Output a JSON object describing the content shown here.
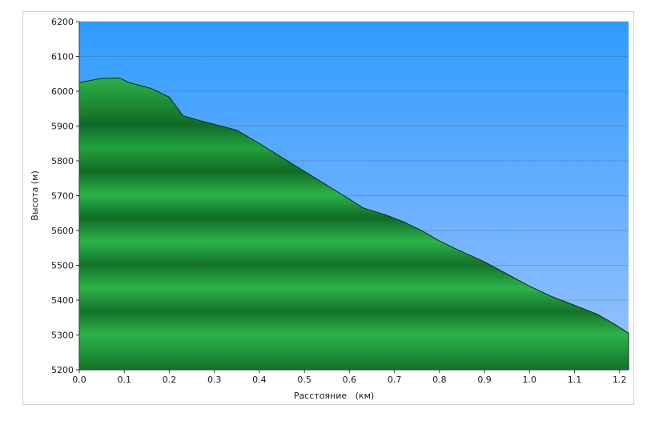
{
  "chart_data": {
    "type": "area",
    "title": "",
    "xlabel": "Расстояние   (км)",
    "ylabel": "Высота (м)",
    "xlim": [
      0.0,
      1.22
    ],
    "ylim": [
      5200,
      6200
    ],
    "x_ticks": [
      "0.0",
      "0.1",
      "0.2",
      "0.3",
      "0.4",
      "0.5",
      "0.6",
      "0.7",
      "0.8",
      "0.9",
      "1.0",
      "1.1",
      "1.2"
    ],
    "y_ticks": [
      "5200",
      "5300",
      "5400",
      "5500",
      "5600",
      "5700",
      "5800",
      "5900",
      "6000",
      "6100",
      "6200"
    ],
    "grid": true,
    "legend": "none",
    "series": [
      {
        "x": [
          0.0,
          0.02,
          0.05,
          0.09,
          0.11,
          0.16,
          0.2,
          0.23,
          0.27,
          0.3,
          0.35,
          0.4,
          0.45,
          0.5,
          0.55,
          0.6,
          0.63,
          0.68,
          0.72,
          0.76,
          0.8,
          0.84,
          0.9,
          0.95,
          1.0,
          1.05,
          1.1,
          1.15,
          1.19,
          1.22
        ],
        "y": [
          6025,
          6030,
          6037,
          6038,
          6025,
          6008,
          5983,
          5930,
          5915,
          5905,
          5888,
          5850,
          5810,
          5770,
          5730,
          5690,
          5665,
          5645,
          5625,
          5600,
          5570,
          5545,
          5510,
          5475,
          5440,
          5410,
          5385,
          5360,
          5330,
          5305
        ]
      }
    ],
    "colors": {
      "sky_top": "#2f9bff",
      "sky_bottom": "#9cc3ff",
      "terrain_light": "#2fb04a",
      "terrain_dark": "#0f6b25",
      "outline": "#0a2a12",
      "grid": "#555555"
    }
  }
}
